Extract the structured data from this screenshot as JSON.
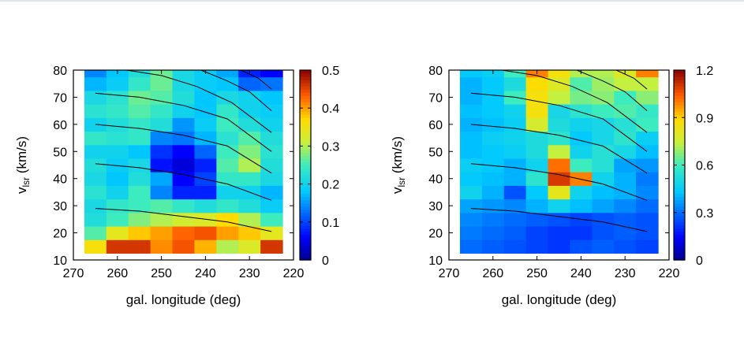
{
  "chart_data": [
    {
      "type": "heatmap",
      "title": "",
      "xlabel": "gal. longitude (deg)",
      "ylabel_main": "v",
      "ylabel_sub": "lsr",
      "ylabel_unit": " (km/s)",
      "xlim": [
        270,
        220
      ],
      "ylim": [
        10,
        80
      ],
      "xticks": [
        270,
        260,
        250,
        240,
        230,
        220
      ],
      "yticks": [
        10,
        20,
        30,
        40,
        50,
        60,
        70,
        80
      ],
      "colorbar": {
        "range": [
          0,
          0.5
        ],
        "ticks": [
          0,
          0.1,
          0.2,
          0.3,
          0.4,
          0.5
        ],
        "tick_labels": [
          "0",
          "0.1",
          "0.2",
          "0.3",
          "0.4",
          "0.5"
        ]
      },
      "x_centers": [
        265,
        260,
        255,
        250,
        245,
        240,
        235,
        230,
        225
      ],
      "y_centers": [
        15,
        20,
        25,
        30,
        35,
        40,
        45,
        50,
        55,
        60,
        65,
        70,
        75,
        80
      ],
      "values": [
        [
          0.36,
          0.46,
          0.46,
          0.41,
          0.44,
          0.39,
          0.3,
          0.33,
          0.46
        ],
        [
          0.26,
          0.34,
          0.38,
          0.4,
          0.43,
          0.44,
          0.4,
          0.38,
          0.34
        ],
        [
          0.22,
          0.25,
          0.28,
          0.3,
          0.32,
          0.33,
          0.37,
          0.3,
          0.25
        ],
        [
          0.21,
          0.24,
          0.25,
          0.26,
          0.24,
          0.22,
          0.24,
          0.22,
          0.19
        ],
        [
          0.23,
          0.2,
          0.25,
          0.14,
          0.08,
          0.08,
          0.2,
          0.2,
          0.17
        ],
        [
          0.21,
          0.18,
          0.22,
          0.16,
          0.06,
          0.1,
          0.24,
          0.24,
          0.21
        ],
        [
          0.22,
          0.19,
          0.21,
          0.07,
          0.04,
          0.08,
          0.26,
          0.3,
          0.22
        ],
        [
          0.2,
          0.2,
          0.18,
          0.09,
          0.06,
          0.12,
          0.25,
          0.28,
          0.23
        ],
        [
          0.24,
          0.23,
          0.24,
          0.14,
          0.13,
          0.17,
          0.23,
          0.26,
          0.22
        ],
        [
          0.2,
          0.22,
          0.24,
          0.22,
          0.15,
          0.19,
          0.25,
          0.22,
          0.2
        ],
        [
          0.23,
          0.24,
          0.26,
          0.24,
          0.2,
          0.18,
          0.24,
          0.2,
          0.19
        ],
        [
          0.21,
          0.23,
          0.27,
          0.26,
          0.22,
          0.18,
          0.21,
          0.2,
          0.18
        ],
        [
          0.17,
          0.19,
          0.24,
          0.27,
          0.21,
          0.19,
          0.18,
          0.12,
          0.13
        ],
        [
          0.14,
          0.18,
          0.22,
          0.27,
          0.21,
          0.19,
          0.16,
          0.08,
          0.06
        ]
      ],
      "curves": [
        [
          [
            265,
            29
          ],
          [
            255,
            28
          ],
          [
            245,
            26
          ],
          [
            235,
            24
          ],
          [
            225,
            20.5
          ]
        ],
        [
          [
            265,
            45.5
          ],
          [
            255,
            44
          ],
          [
            245,
            41.5
          ],
          [
            235,
            38
          ],
          [
            225,
            32
          ]
        ],
        [
          [
            265,
            60
          ],
          [
            255,
            58.5
          ],
          [
            245,
            56
          ],
          [
            235,
            52
          ],
          [
            225,
            42
          ]
        ],
        [
          [
            265,
            71.5
          ],
          [
            255,
            70
          ],
          [
            245,
            67
          ],
          [
            235,
            62
          ],
          [
            225,
            50
          ]
        ],
        [
          [
            258,
            80
          ],
          [
            250,
            78
          ],
          [
            242,
            74
          ],
          [
            234,
            68
          ],
          [
            225,
            57
          ]
        ],
        [
          [
            241,
            80
          ],
          [
            235,
            76
          ],
          [
            230,
            72
          ],
          [
            225,
            65
          ]
        ],
        [
          [
            232,
            80
          ],
          [
            228,
            77
          ],
          [
            225,
            73
          ]
        ]
      ]
    },
    {
      "type": "heatmap",
      "title": "",
      "xlabel": "gal. longitude (deg)",
      "ylabel_main": "v",
      "ylabel_sub": "lsr",
      "ylabel_unit": " (km/s)",
      "xlim": [
        270,
        220
      ],
      "ylim": [
        10,
        80
      ],
      "xticks": [
        270,
        260,
        250,
        240,
        230,
        220
      ],
      "yticks": [
        10,
        20,
        30,
        40,
        50,
        60,
        70,
        80
      ],
      "colorbar": {
        "range": [
          0,
          1.2
        ],
        "ticks": [
          0,
          0.3,
          0.6,
          0.9,
          1.2
        ],
        "tick_labels": [
          "0",
          "0.3",
          "0.6",
          "0.9",
          "1.2"
        ]
      },
      "x_centers": [
        265,
        260,
        255,
        250,
        245,
        240,
        235,
        230,
        225
      ],
      "y_centers": [
        15,
        20,
        25,
        30,
        35,
        40,
        45,
        50,
        55,
        60,
        65,
        70,
        75,
        80
      ],
      "values": [
        [
          0.3,
          0.28,
          0.26,
          0.24,
          0.22,
          0.26,
          0.28,
          0.26,
          0.24
        ],
        [
          0.32,
          0.3,
          0.28,
          0.24,
          0.22,
          0.22,
          0.26,
          0.28,
          0.26
        ],
        [
          0.34,
          0.32,
          0.3,
          0.28,
          0.26,
          0.24,
          0.26,
          0.28,
          0.26
        ],
        [
          0.38,
          0.36,
          0.34,
          0.4,
          0.48,
          0.42,
          0.38,
          0.34,
          0.3
        ],
        [
          0.48,
          0.4,
          0.26,
          0.44,
          0.82,
          0.48,
          0.42,
          0.4,
          0.34
        ],
        [
          0.44,
          0.42,
          0.4,
          0.56,
          1.1,
          1.0,
          0.48,
          0.4,
          0.32
        ],
        [
          0.46,
          0.44,
          0.4,
          0.48,
          1.02,
          0.6,
          0.54,
          0.38,
          0.36
        ],
        [
          0.42,
          0.44,
          0.46,
          0.52,
          0.74,
          0.48,
          0.54,
          0.5,
          0.42
        ],
        [
          0.42,
          0.46,
          0.48,
          0.52,
          0.56,
          0.44,
          0.5,
          0.56,
          0.46
        ],
        [
          0.4,
          0.42,
          0.46,
          0.78,
          0.52,
          0.48,
          0.5,
          0.54,
          0.6
        ],
        [
          0.42,
          0.44,
          0.48,
          0.86,
          0.5,
          0.56,
          0.6,
          0.62,
          0.58
        ],
        [
          0.4,
          0.44,
          0.6,
          0.86,
          0.74,
          0.66,
          0.68,
          0.6,
          0.68
        ],
        [
          0.4,
          0.44,
          0.52,
          0.88,
          0.8,
          0.62,
          0.7,
          0.74,
          0.74
        ],
        [
          0.44,
          0.46,
          0.6,
          1.0,
          0.86,
          0.72,
          0.72,
          0.8,
          1.0
        ]
      ],
      "curves": [
        [
          [
            265,
            29
          ],
          [
            255,
            28
          ],
          [
            245,
            26
          ],
          [
            235,
            24
          ],
          [
            225,
            20.5
          ]
        ],
        [
          [
            265,
            45.5
          ],
          [
            255,
            44
          ],
          [
            245,
            41.5
          ],
          [
            235,
            38
          ],
          [
            225,
            32
          ]
        ],
        [
          [
            265,
            60
          ],
          [
            255,
            58.5
          ],
          [
            245,
            56
          ],
          [
            235,
            52
          ],
          [
            225,
            42
          ]
        ],
        [
          [
            265,
            71.5
          ],
          [
            255,
            70
          ],
          [
            245,
            67
          ],
          [
            235,
            62
          ],
          [
            225,
            50
          ]
        ],
        [
          [
            258,
            80
          ],
          [
            250,
            78
          ],
          [
            242,
            74
          ],
          [
            234,
            68
          ],
          [
            225,
            57
          ]
        ],
        [
          [
            241,
            80
          ],
          [
            235,
            76
          ],
          [
            230,
            72
          ],
          [
            225,
            65
          ]
        ],
        [
          [
            232,
            80
          ],
          [
            228,
            77
          ],
          [
            225,
            73
          ]
        ]
      ]
    }
  ]
}
